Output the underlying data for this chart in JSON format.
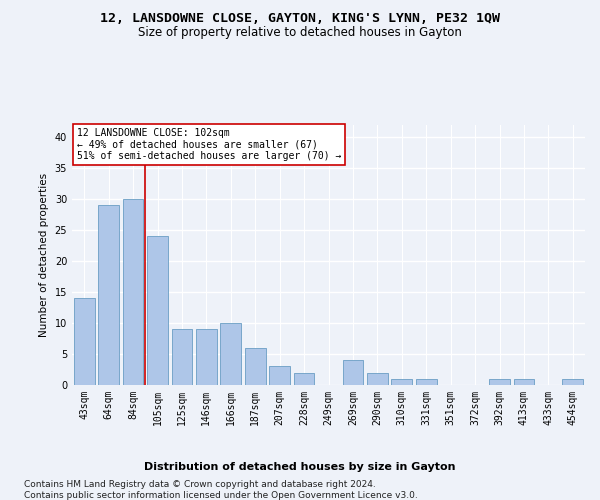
{
  "title_line1": "12, LANSDOWNE CLOSE, GAYTON, KING'S LYNN, PE32 1QW",
  "title_line2": "Size of property relative to detached houses in Gayton",
  "xlabel": "Distribution of detached houses by size in Gayton",
  "ylabel": "Number of detached properties",
  "categories": [
    "43sqm",
    "64sqm",
    "84sqm",
    "105sqm",
    "125sqm",
    "146sqm",
    "166sqm",
    "187sqm",
    "207sqm",
    "228sqm",
    "249sqm",
    "269sqm",
    "290sqm",
    "310sqm",
    "331sqm",
    "351sqm",
    "372sqm",
    "392sqm",
    "413sqm",
    "433sqm",
    "454sqm"
  ],
  "values": [
    14,
    29,
    30,
    24,
    9,
    9,
    10,
    6,
    3,
    2,
    0,
    4,
    2,
    1,
    1,
    0,
    0,
    1,
    1,
    0,
    1
  ],
  "bar_color": "#aec6e8",
  "bar_edge_color": "#6a9ec4",
  "vline_x_index": 2,
  "vline_color": "#cc0000",
  "annotation_box_color": "#cc0000",
  "annotation_line1": "12 LANSDOWNE CLOSE: 102sqm",
  "annotation_line2": "← 49% of detached houses are smaller (67)",
  "annotation_line3": "51% of semi-detached houses are larger (70) →",
  "ylim": [
    0,
    42
  ],
  "yticks": [
    0,
    5,
    10,
    15,
    20,
    25,
    30,
    35,
    40
  ],
  "footer_line1": "Contains HM Land Registry data © Crown copyright and database right 2024.",
  "footer_line2": "Contains public sector information licensed under the Open Government Licence v3.0.",
  "bg_color": "#eef2f9",
  "plot_bg_color": "#eef2f9",
  "grid_color": "#ffffff",
  "title_fontsize": 9.5,
  "subtitle_fontsize": 8.5,
  "tick_fontsize": 7,
  "ylabel_fontsize": 7.5,
  "xlabel_fontsize": 8,
  "footer_fontsize": 6.5,
  "annotation_fontsize": 7
}
